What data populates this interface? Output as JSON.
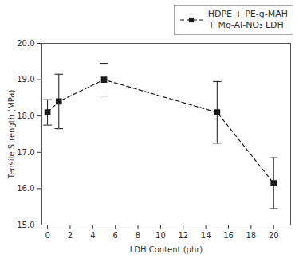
{
  "chart_data": {
    "type": "line",
    "xlabel": "LDH Content (phr)",
    "ylabel": "Tensile Strength (MPa)",
    "x": [
      0,
      1,
      5,
      15,
      20
    ],
    "series": [
      {
        "name": "HDPE + PE-g-MAH\n+ Mg-Al-NO₃ LDH",
        "color": "#1a1a1a",
        "values": [
          18.1,
          18.4,
          19.0,
          18.1,
          16.15
        ],
        "yerr": [
          0.35,
          0.75,
          0.45,
          0.85,
          0.7
        ],
        "marker": "square",
        "line_style": "dashed"
      }
    ],
    "xlim": [
      -0.5,
      21.5
    ],
    "ylim": [
      15,
      20
    ],
    "xticks": [
      0,
      2,
      4,
      6,
      8,
      10,
      12,
      14,
      16,
      18,
      20
    ],
    "yticks": [
      15,
      16,
      17,
      18,
      19,
      20
    ],
    "grid": false,
    "legend": "upper right"
  }
}
